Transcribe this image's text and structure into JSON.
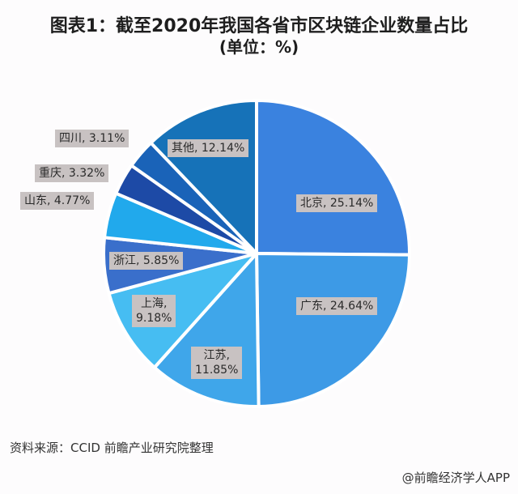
{
  "header": {
    "title_line1": "图表1：截至2020年我国各省市区块链企业数量占比",
    "title_line2": "(单位：%)"
  },
  "footer": {
    "source": "资料来源：CCID 前瞻产业研究院整理",
    "brand": "@前瞻经济学人APP"
  },
  "labels": {
    "beijing": "北京, 25.14%",
    "guangdong": "广东, 24.64%",
    "jiangsu_1": "江苏,",
    "jiangsu_2": "11.85%",
    "shanghai_1": "上海,",
    "shanghai_2": "9.18%",
    "zhejiang": "浙江, 5.85%",
    "shandong": "山东, 4.77%",
    "chongqing": "重庆, 3.32%",
    "sichuan": "四川, 3.11%",
    "other": "其他, 12.14%"
  },
  "chart_data": {
    "type": "pie",
    "title": "图表1：截至2020年我国各省市区块链企业数量占比 (单位：%)",
    "categories": [
      "北京",
      "广东",
      "江苏",
      "上海",
      "浙江",
      "山东",
      "重庆",
      "四川",
      "其他"
    ],
    "values": [
      25.14,
      24.64,
      11.85,
      9.18,
      5.85,
      4.77,
      3.32,
      3.11,
      12.14
    ],
    "colors": [
      "#3a82df",
      "#3d9ae6",
      "#3fa6ea",
      "#46bdf2",
      "#3a6fcb",
      "#21a9ec",
      "#1d4aa6",
      "#1a63b8",
      "#1672b8"
    ],
    "start_angle_deg": 0,
    "direction": "clockwise",
    "legend": "none (data labels)",
    "source": "资料来源：CCID 前瞻产业研究院整理"
  }
}
